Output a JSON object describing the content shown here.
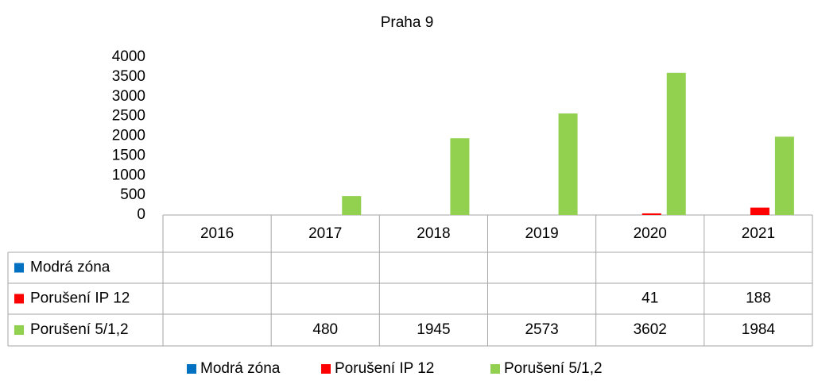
{
  "chart_data": {
    "type": "bar",
    "title": "Praha 9",
    "categories": [
      "2016",
      "2017",
      "2018",
      "2019",
      "2020",
      "2021"
    ],
    "series": [
      {
        "name": "Modrá zóna",
        "color": "#0070c0",
        "values": [
          null,
          null,
          null,
          null,
          null,
          null
        ]
      },
      {
        "name": "Porušení IP 12",
        "color": "#ff0000",
        "values": [
          null,
          null,
          null,
          null,
          41,
          188
        ]
      },
      {
        "name": "Porušení 5/1,2",
        "color": "#92d050",
        "values": [
          null,
          480,
          1945,
          2573,
          3602,
          1984
        ]
      }
    ],
    "ylim": [
      0,
      4000
    ],
    "yticks": [
      0,
      500,
      1000,
      1500,
      2000,
      2500,
      3000,
      3500,
      4000
    ],
    "grid": false,
    "legend": "bottom"
  }
}
